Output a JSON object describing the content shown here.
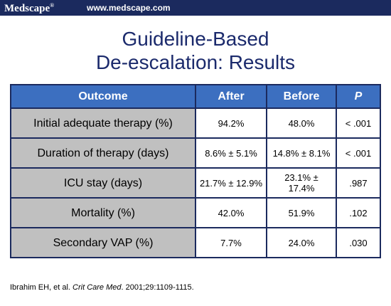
{
  "header": {
    "brand": "Medscape",
    "brand_mark": "®",
    "url": "www.medscape.com"
  },
  "title": {
    "line1": "Guideline-Based",
    "line2": "De-escalation: Results"
  },
  "table": {
    "columns": [
      "Outcome",
      "After",
      "Before",
      "P"
    ],
    "rows": [
      [
        "Initial adequate therapy (%)",
        "94.2%",
        "48.0%",
        "< .001"
      ],
      [
        "Duration of therapy (days)",
        "8.6% ± 5.1%",
        "14.8% ± 8.1%",
        "< .001"
      ],
      [
        "ICU stay (days)",
        "21.7% ± 12.9%",
        "23.1% ± 17.4%",
        ".987"
      ],
      [
        "Mortality (%)",
        "42.0%",
        "51.9%",
        ".102"
      ],
      [
        "Secondary VAP (%)",
        "7.7%",
        "24.0%",
        ".030"
      ]
    ]
  },
  "citation": {
    "authors": "Ibrahim EH, et al.",
    "journal": "Crit Care Med",
    "details": ". 2001;29:1109-1115."
  }
}
